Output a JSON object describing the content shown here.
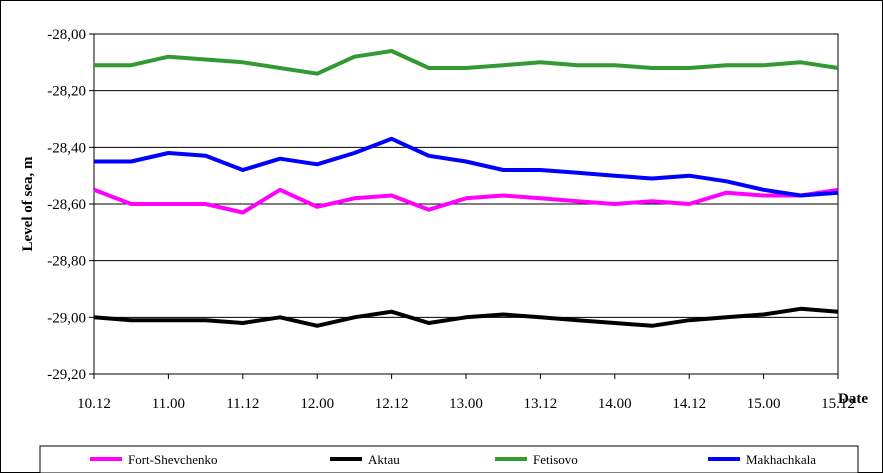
{
  "chart_data": {
    "type": "line",
    "title": "",
    "xlabel": "Date",
    "ylabel": "Level of sea, m",
    "ylim": [
      -29.2,
      -28.0
    ],
    "yticks": [
      "-28,00",
      "-28,20",
      "-28,40",
      "-28,60",
      "-28,80",
      "-29,00",
      "-29,20"
    ],
    "xtick_labels": [
      "10.12",
      "11.00",
      "11.12",
      "12.00",
      "12.12",
      "13.00",
      "13.12",
      "14.00",
      "14.12",
      "15.00",
      "15.12"
    ],
    "grid": "horizontal",
    "legend_position": "bottom",
    "x": [
      0,
      0.5,
      1,
      1.5,
      2,
      2.5,
      3,
      3.5,
      4,
      4.5,
      5,
      5.5,
      6,
      6.5,
      7,
      7.5,
      8,
      8.5,
      9,
      9.5,
      10
    ],
    "series": [
      {
        "name": "Fort-Shevchenko",
        "color": "#ff00ff",
        "values": [
          -28.55,
          -28.6,
          -28.6,
          -28.6,
          -28.63,
          -28.55,
          -28.61,
          -28.58,
          -28.57,
          -28.62,
          -28.58,
          -28.57,
          -28.58,
          -28.59,
          -28.6,
          -28.59,
          -28.6,
          -28.56,
          -28.57,
          -28.57,
          -28.55
        ]
      },
      {
        "name": "Aktau",
        "color": "#000000",
        "values": [
          -29.0,
          -29.01,
          -29.01,
          -29.01,
          -29.02,
          -29.0,
          -29.03,
          -29.0,
          -28.98,
          -29.02,
          -29.0,
          -28.99,
          -29.0,
          -29.01,
          -29.02,
          -29.03,
          -29.01,
          -29.0,
          -28.99,
          -28.97,
          -28.98
        ]
      },
      {
        "name": "Fetisovo",
        "color": "#339933",
        "values": [
          -28.11,
          -28.11,
          -28.08,
          -28.09,
          -28.1,
          -28.12,
          -28.14,
          -28.08,
          -28.06,
          -28.12,
          -28.12,
          -28.11,
          -28.1,
          -28.11,
          -28.11,
          -28.12,
          -28.12,
          -28.11,
          -28.11,
          -28.1,
          -28.12
        ]
      },
      {
        "name": "Makhachkala",
        "color": "#0000ff",
        "values": [
          -28.45,
          -28.45,
          -28.42,
          -28.43,
          -28.48,
          -28.44,
          -28.46,
          -28.42,
          -28.37,
          -28.43,
          -28.45,
          -28.48,
          -28.48,
          -28.49,
          -28.5,
          -28.51,
          -28.5,
          -28.52,
          -28.55,
          -28.57,
          -28.56
        ]
      }
    ]
  }
}
